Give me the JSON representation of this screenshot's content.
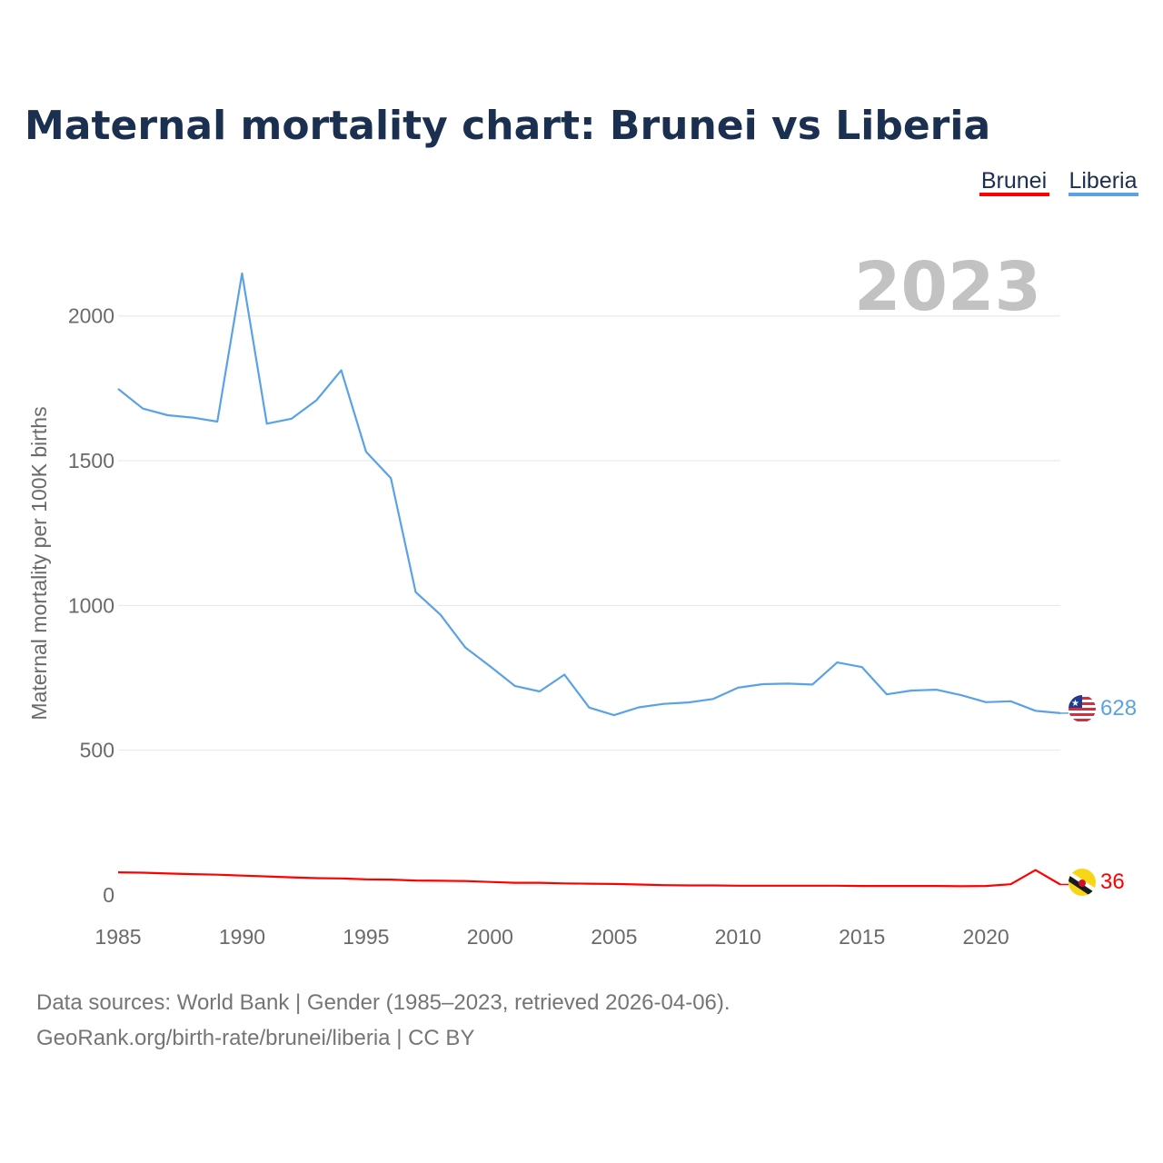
{
  "header": {
    "title": "Maternal mortality chart: Brunei vs Liberia"
  },
  "watermark": {
    "year": "2023"
  },
  "footer": {
    "line1": "Data sources: World Bank | Gender (1985–2023, retrieved 2026-04-06).",
    "line2": "GeoRank.org/birth-rate/brunei/liberia | CC BY"
  },
  "colors": {
    "brunei": "#ff0000",
    "liberia": "#5aa2e6",
    "title": "#1b2f50",
    "grid": "#e6e6e6"
  },
  "chart_data": {
    "type": "line",
    "title": "Maternal mortality chart: Brunei vs Liberia",
    "xlabel": "",
    "ylabel": "Maternal mortality per 100K births",
    "xlim": [
      1985,
      2023
    ],
    "ylim": [
      0,
      2200
    ],
    "x_ticks": [
      1985,
      1990,
      1995,
      2000,
      2005,
      2010,
      2015,
      2020
    ],
    "y_ticks": [
      0,
      500,
      1000,
      1500,
      2000
    ],
    "grid": true,
    "legend_position": "top-right",
    "x": [
      1985,
      1986,
      1987,
      1988,
      1989,
      1990,
      1991,
      1992,
      1993,
      1994,
      1995,
      1996,
      1997,
      1998,
      1999,
      2000,
      2001,
      2002,
      2003,
      2004,
      2005,
      2006,
      2007,
      2008,
      2009,
      2010,
      2011,
      2012,
      2013,
      2014,
      2015,
      2016,
      2017,
      2018,
      2019,
      2020,
      2021,
      2022,
      2023
    ],
    "series": [
      {
        "name": "Brunei",
        "color": "#ff0000",
        "end_label": "36",
        "flag_icon": "brunei-flag-icon",
        "values": [
          78,
          77,
          74,
          72,
          70,
          67,
          64,
          61,
          58,
          57,
          54,
          53,
          50,
          49,
          48,
          45,
          42,
          42,
          40,
          39,
          38,
          36,
          34,
          33,
          33,
          32,
          32,
          32,
          32,
          32,
          31,
          31,
          31,
          31,
          30,
          31,
          37,
          86,
          36
        ]
      },
      {
        "name": "Liberia",
        "color": "#5aa2e6",
        "end_label": "628",
        "flag_icon": "liberia-flag-icon",
        "values": [
          1748,
          1680,
          1657,
          1649,
          1635,
          2147,
          1628,
          1645,
          1709,
          1812,
          1531,
          1440,
          1046,
          968,
          855,
          790,
          722,
          703,
          761,
          647,
          621,
          648,
          660,
          665,
          677,
          716,
          728,
          730,
          727,
          803,
          787,
          693,
          706,
          709,
          690,
          666,
          669,
          636,
          628
        ]
      }
    ]
  }
}
